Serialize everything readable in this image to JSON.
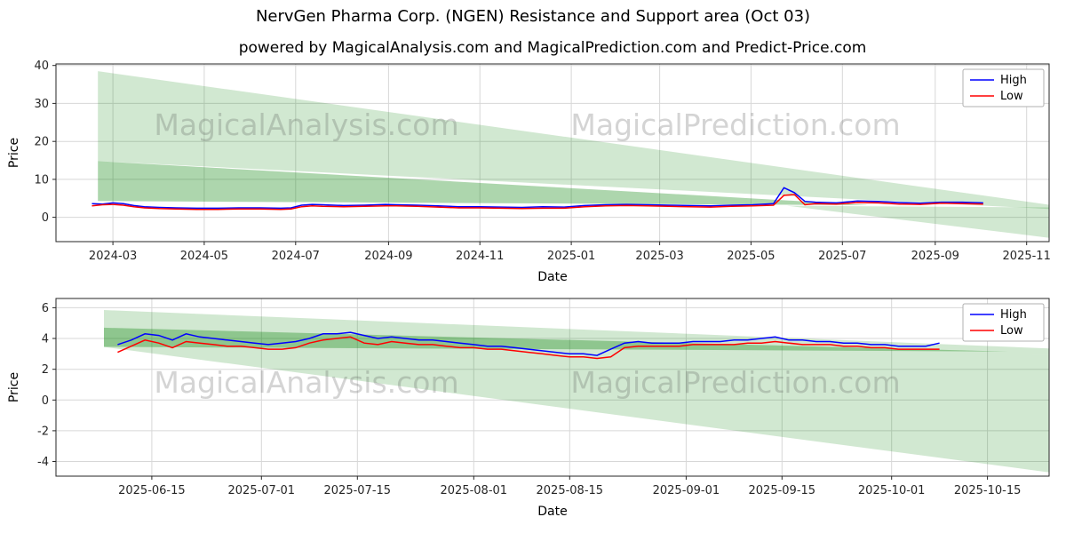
{
  "page": {
    "title": "NervGen Pharma Corp. (NGEN) Resistance and Support area (Oct 03)",
    "subtitle": "powered by MagicalAnalysis.com and MagicalPrediction.com and Predict-Price.com"
  },
  "watermarks": [
    "MagicalAnalysis.com",
    "MagicalPrediction.com"
  ],
  "colors": {
    "high": "#0000ff",
    "low": "#ff0000",
    "area": "#008000",
    "grid": "#d7d7d7",
    "watermark_gray": "#555555"
  },
  "chart_data": [
    {
      "name": "full-history",
      "type": "line",
      "xlabel": "Date",
      "ylabel": "Price",
      "grid": true,
      "legend_position": "upper right",
      "legend": [
        "High",
        "Low"
      ],
      "xlim": [
        "2024-01-23",
        "2025-11-16"
      ],
      "ylim": [
        -6.4,
        40.4
      ],
      "yticks": [
        0,
        10,
        20,
        30,
        40
      ],
      "xtick_labels": [
        "2024-03",
        "2024-05",
        "2024-07",
        "2024-09",
        "2024-11",
        "2025-01",
        "2025-03",
        "2025-05",
        "2025-07",
        "2025-09",
        "2025-11"
      ],
      "xtick_dates": [
        "2024-03-01",
        "2024-05-01",
        "2024-07-01",
        "2024-09-01",
        "2024-11-01",
        "2025-01-01",
        "2025-03-01",
        "2025-05-01",
        "2025-07-01",
        "2025-09-01",
        "2025-11-01"
      ],
      "x": [
        "2024-02-16",
        "2024-02-23",
        "2024-03-01",
        "2024-03-08",
        "2024-03-15",
        "2024-03-22",
        "2024-04-01",
        "2024-04-12",
        "2024-04-26",
        "2024-05-10",
        "2024-05-24",
        "2024-06-07",
        "2024-06-21",
        "2024-06-28",
        "2024-07-05",
        "2024-07-12",
        "2024-07-19",
        "2024-08-02",
        "2024-08-16",
        "2024-08-30",
        "2024-09-06",
        "2024-09-20",
        "2024-10-04",
        "2024-10-18",
        "2024-11-01",
        "2024-11-15",
        "2024-11-29",
        "2024-12-13",
        "2024-12-27",
        "2025-01-10",
        "2025-01-24",
        "2025-02-07",
        "2025-02-21",
        "2025-03-07",
        "2025-03-21",
        "2025-04-04",
        "2025-04-18",
        "2025-05-02",
        "2025-05-16",
        "2025-05-23",
        "2025-05-30",
        "2025-06-06",
        "2025-06-13",
        "2025-06-27",
        "2025-07-11",
        "2025-07-25",
        "2025-08-08",
        "2025-08-22",
        "2025-09-05",
        "2025-09-19",
        "2025-10-03"
      ],
      "series": [
        {
          "name": "High",
          "color": "#0000ff",
          "y": [
            3.6,
            3.5,
            3.8,
            3.6,
            3.1,
            2.8,
            2.6,
            2.5,
            2.4,
            2.4,
            2.5,
            2.5,
            2.4,
            2.5,
            3.2,
            3.4,
            3.3,
            3.1,
            3.2,
            3.4,
            3.3,
            3.2,
            3.0,
            2.8,
            2.8,
            2.7,
            2.6,
            2.8,
            2.7,
            3.1,
            3.3,
            3.4,
            3.3,
            3.2,
            3.1,
            3.0,
            3.2,
            3.3,
            3.6,
            7.8,
            6.5,
            4.2,
            4.0,
            3.8,
            4.3,
            4.2,
            3.9,
            3.7,
            4.0,
            4.0,
            3.8
          ]
        },
        {
          "name": "Low",
          "color": "#ff0000",
          "y": [
            3.0,
            3.3,
            3.4,
            3.2,
            2.8,
            2.5,
            2.3,
            2.2,
            2.1,
            2.1,
            2.2,
            2.2,
            2.1,
            2.2,
            2.8,
            3.0,
            2.9,
            2.8,
            2.9,
            3.0,
            3.0,
            2.9,
            2.7,
            2.5,
            2.5,
            2.4,
            2.3,
            2.4,
            2.4,
            2.8,
            3.0,
            3.1,
            3.0,
            2.9,
            2.8,
            2.7,
            2.9,
            3.0,
            3.2,
            5.8,
            6.0,
            3.3,
            3.6,
            3.5,
            3.9,
            3.8,
            3.5,
            3.4,
            3.7,
            3.6,
            3.5
          ]
        }
      ],
      "areas": [
        {
          "color": "#008000",
          "opacity": 0.18,
          "points": [
            [
              "2024-02-20",
              38.5
            ],
            [
              "2025-11-16",
              3.3
            ],
            [
              "2025-11-16",
              2.2
            ],
            [
              "2024-02-20",
              14.8
            ]
          ]
        },
        {
          "color": "#008000",
          "opacity": 0.32,
          "points": [
            [
              "2024-02-20",
              14.8
            ],
            [
              "2025-07-20",
              3.2
            ],
            [
              "2024-02-20",
              4.3
            ]
          ]
        },
        {
          "color": "#008000",
          "opacity": 0.18,
          "points": [
            [
              "2025-05-25",
              3.05
            ],
            [
              "2025-11-16",
              2.6
            ],
            [
              "2025-11-16",
              -5.4
            ]
          ]
        }
      ]
    },
    {
      "name": "recent-detail",
      "type": "line",
      "xlabel": "Date",
      "ylabel": "Price",
      "grid": true,
      "legend_position": "upper right",
      "legend": [
        "High",
        "Low"
      ],
      "xlim": [
        "2025-06-01",
        "2025-10-24"
      ],
      "ylim": [
        -4.95,
        6.6
      ],
      "yticks": [
        -4,
        -2,
        0,
        2,
        4,
        6
      ],
      "xtick_labels": [
        "2025-06-15",
        "2025-07-01",
        "2025-07-15",
        "2025-08-01",
        "2025-08-15",
        "2025-09-01",
        "2025-09-15",
        "2025-10-01",
        "2025-10-15"
      ],
      "xtick_dates": [
        "2025-06-15",
        "2025-07-01",
        "2025-07-15",
        "2025-08-01",
        "2025-08-15",
        "2025-09-01",
        "2025-09-15",
        "2025-10-01",
        "2025-10-15"
      ],
      "x": [
        "2025-06-10",
        "2025-06-12",
        "2025-06-14",
        "2025-06-16",
        "2025-06-18",
        "2025-06-20",
        "2025-06-22",
        "2025-06-24",
        "2025-06-26",
        "2025-06-28",
        "2025-06-30",
        "2025-07-02",
        "2025-07-04",
        "2025-07-06",
        "2025-07-08",
        "2025-07-10",
        "2025-07-12",
        "2025-07-14",
        "2025-07-16",
        "2025-07-18",
        "2025-07-20",
        "2025-07-22",
        "2025-07-24",
        "2025-07-26",
        "2025-07-28",
        "2025-07-30",
        "2025-08-01",
        "2025-08-03",
        "2025-08-05",
        "2025-08-07",
        "2025-08-09",
        "2025-08-11",
        "2025-08-13",
        "2025-08-15",
        "2025-08-17",
        "2025-08-19",
        "2025-08-21",
        "2025-08-23",
        "2025-08-25",
        "2025-08-27",
        "2025-08-29",
        "2025-08-31",
        "2025-09-02",
        "2025-09-04",
        "2025-09-06",
        "2025-09-08",
        "2025-09-10",
        "2025-09-12",
        "2025-09-14",
        "2025-09-16",
        "2025-09-18",
        "2025-09-20",
        "2025-09-22",
        "2025-09-24",
        "2025-09-26",
        "2025-09-28",
        "2025-09-30",
        "2025-10-02",
        "2025-10-04",
        "2025-10-06",
        "2025-10-08"
      ],
      "series": [
        {
          "name": "High",
          "color": "#0000ff",
          "y": [
            3.6,
            3.9,
            4.3,
            4.2,
            3.9,
            4.3,
            4.1,
            4.0,
            3.9,
            3.8,
            3.7,
            3.6,
            3.7,
            3.8,
            4.0,
            4.3,
            4.3,
            4.4,
            4.2,
            4.0,
            4.1,
            4.0,
            3.9,
            3.9,
            3.8,
            3.7,
            3.6,
            3.5,
            3.5,
            3.4,
            3.3,
            3.2,
            3.1,
            3.0,
            3.0,
            2.9,
            3.3,
            3.7,
            3.8,
            3.7,
            3.7,
            3.7,
            3.8,
            3.8,
            3.8,
            3.9,
            3.9,
            4.0,
            4.1,
            3.9,
            3.9,
            3.8,
            3.8,
            3.7,
            3.7,
            3.6,
            3.6,
            3.5,
            3.5,
            3.5,
            3.7
          ]
        },
        {
          "name": "Low",
          "color": "#ff0000",
          "y": [
            3.1,
            3.5,
            3.9,
            3.7,
            3.4,
            3.8,
            3.7,
            3.6,
            3.5,
            3.5,
            3.4,
            3.3,
            3.3,
            3.4,
            3.7,
            3.9,
            4.0,
            4.1,
            3.7,
            3.6,
            3.8,
            3.7,
            3.6,
            3.6,
            3.5,
            3.4,
            3.4,
            3.3,
            3.3,
            3.2,
            3.1,
            3.0,
            2.9,
            2.8,
            2.8,
            2.7,
            2.8,
            3.4,
            3.5,
            3.5,
            3.5,
            3.5,
            3.6,
            3.6,
            3.6,
            3.6,
            3.7,
            3.7,
            3.8,
            3.7,
            3.6,
            3.6,
            3.6,
            3.5,
            3.5,
            3.4,
            3.4,
            3.3,
            3.3,
            3.3,
            3.3
          ]
        }
      ],
      "areas": [
        {
          "color": "#008000",
          "opacity": 0.18,
          "points": [
            [
              "2025-06-08",
              5.85
            ],
            [
              "2025-10-24",
              3.35
            ],
            [
              "2025-10-24",
              2.95
            ],
            [
              "2025-06-08",
              3.45
            ]
          ]
        },
        {
          "color": "#008000",
          "opacity": 0.32,
          "points": [
            [
              "2025-06-08",
              4.7
            ],
            [
              "2025-10-18",
              3.15
            ],
            [
              "2025-06-08",
              3.45
            ]
          ]
        },
        {
          "color": "#008000",
          "opacity": 0.18,
          "points": [
            [
              "2025-06-08",
              3.45
            ],
            [
              "2025-10-24",
              2.95
            ],
            [
              "2025-10-24",
              -4.7
            ]
          ]
        }
      ]
    }
  ]
}
